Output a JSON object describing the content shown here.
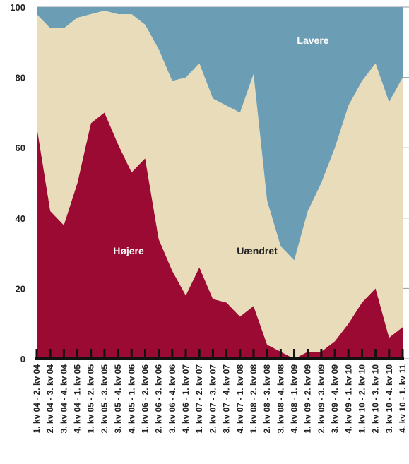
{
  "chart_data": {
    "type": "stacked_area",
    "categories": [
      "1. kv 04 - 2. kv 04",
      "2. kv 04 - 3. kv 04",
      "3. kv 04 - 4. kv 04",
      "4. kv 04 - 1. kv 05",
      "1. kv 05 - 2. kv 05",
      "2. kv 05 - 3. kv 05",
      "3. kv 05 - 4. kv 05",
      "4. kv 05 - 1. kv 06",
      "1. kv 06 - 2. kv 06",
      "2. kv 06 - 3. kv 06",
      "3. kv 06 - 4. kv 06",
      "4. kv 06 - 1. kv 07",
      "1. kv 07 - 2. kv 07",
      "2. kv 07 - 3. kv 07",
      "3. kv 07 - 4. kv 07",
      "4. kv 07 - 1. kv 08",
      "1. kv 08 - 2. kv 08",
      "2. kv 08 - 3. kv 08",
      "3. kv 08 - 4. kv 08",
      "4. kv 08 - 1. kv 09",
      "1. kv 09 - 2. kv 09",
      "2. kv 09 - 3. kv 09",
      "3. kv 09 - 4. kv 09",
      "4. kv 09 - 1. kv 10",
      "1. kv 10 - 2. kv 10",
      "2. kv 10 - 3. kv 10",
      "3. kv 10 - 4. kv 10",
      "4. kv 10 - 1. kv 11"
    ],
    "series": [
      {
        "name": "Højere",
        "color": "#9b0a32",
        "values": [
          66,
          42,
          38,
          50,
          67,
          70,
          61,
          53,
          57,
          34,
          25,
          18,
          26,
          17,
          16,
          12,
          15,
          4,
          2,
          0,
          2,
          2,
          5,
          10,
          16,
          20,
          6,
          9
        ]
      },
      {
        "name": "Uændret",
        "color": "#e8dcbb",
        "values": [
          32,
          52,
          56,
          47,
          31,
          29,
          37,
          45,
          38,
          54,
          54,
          62,
          58,
          57,
          56,
          58,
          66,
          41,
          30,
          28,
          40,
          48,
          55,
          62,
          63,
          64,
          67,
          71
        ]
      },
      {
        "name": "Lavere",
        "color": "#6b9db5",
        "values": [
          2,
          6,
          6,
          3,
          2,
          1,
          2,
          2,
          5,
          12,
          21,
          20,
          16,
          26,
          28,
          30,
          19,
          55,
          68,
          72,
          58,
          50,
          40,
          28,
          21,
          16,
          27,
          20
        ]
      }
    ],
    "ylim": [
      0,
      100
    ],
    "yticks": [
      0,
      20,
      40,
      60,
      80,
      100
    ],
    "grid": true
  }
}
